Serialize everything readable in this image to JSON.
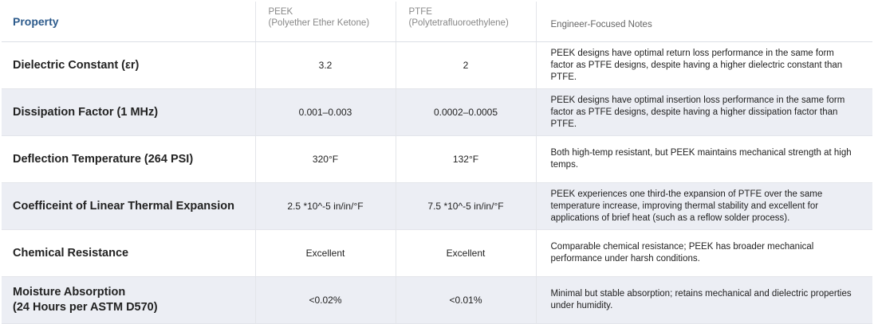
{
  "table": {
    "columns": [
      {
        "title": "Property"
      },
      {
        "title": "PEEK",
        "subtitle": "(Polyether Ether Ketone)"
      },
      {
        "title": "PTFE",
        "subtitle": "(Polytetrafluoroethylene)"
      },
      {
        "title": "Engineer-Focused Notes"
      }
    ],
    "rows": [
      {
        "property": "Dielectric Constant (εr)",
        "peek": "3.2",
        "ptfe": "2",
        "notes": "PEEK designs have optimal return loss performance in the same form factor as PTFE designs, despite having a higher dielectric constant than PTFE."
      },
      {
        "property": "Dissipation Factor (1 MHz)",
        "peek": "0.001–0.003",
        "ptfe": "0.0002–0.0005",
        "notes": "PEEK designs have optimal insertion loss performance in the same form factor as PTFE designs, despite having a higher dissipation factor than PTFE."
      },
      {
        "property": "Deflection Temperature (264 PSI)",
        "peek": "320°F",
        "ptfe": "132°F",
        "notes": "Both high-temp resistant, but PEEK maintains mechanical strength at high temps."
      },
      {
        "property": "Coefficeint of Linear Thermal Expansion",
        "peek": "2.5 *10^-5 in/in/°F",
        "ptfe": "7.5 *10^-5 in/in/°F",
        "notes": "PEEK experiences one third-the expansion of PTFE over the same temperature increase, improving thermal stability and excellent for applications of brief heat (such as a reflow solder process)."
      },
      {
        "property": "Chemical Resistance",
        "peek": "Excellent",
        "ptfe": "Excellent",
        "notes": "Comparable chemical resistance; PEEK has broader mechanical performance under harsh conditions."
      },
      {
        "property": "Moisture Absorption",
        "property_detail": "(24 Hours per ASTM D570)",
        "peek": "<0.02%",
        "ptfe": "<0.01%",
        "notes": "Minimal but stable absorption; retains mechanical and dielectric properties under humidity."
      }
    ]
  }
}
